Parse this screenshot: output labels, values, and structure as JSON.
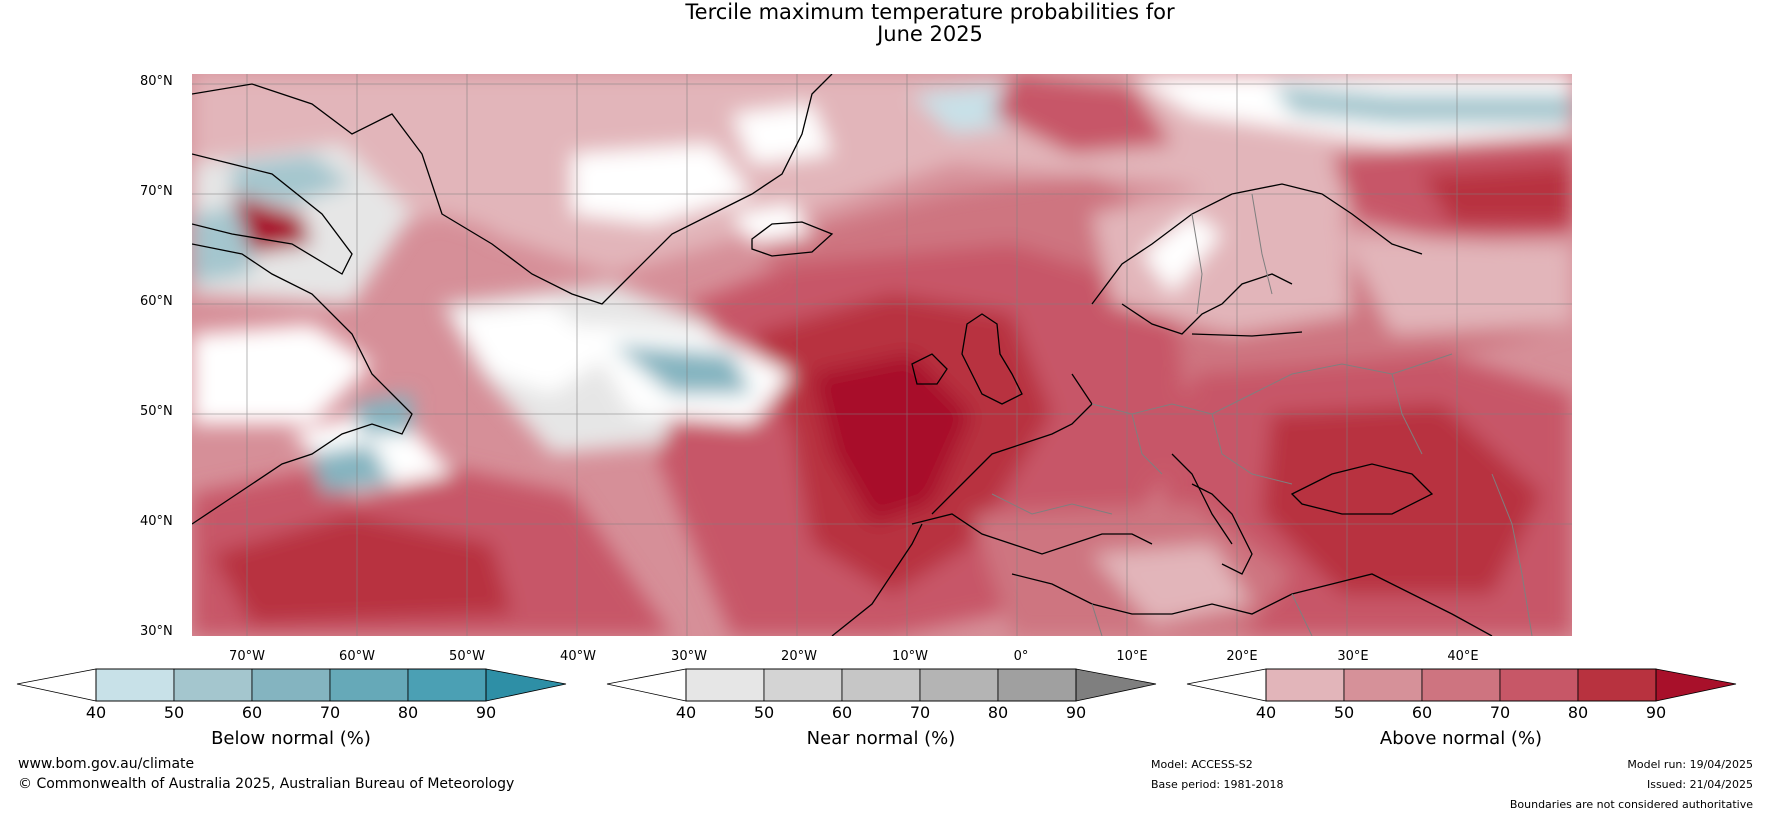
{
  "title": {
    "line1": "Tercile maximum temperature probabilities for",
    "line2": "June 2025"
  },
  "map": {
    "lat_labels": [
      "80°N",
      "70°N",
      "60°N",
      "50°N",
      "40°N",
      "30°N"
    ],
    "lon_labels": [
      "70°W",
      "60°W",
      "50°W",
      "40°W",
      "30°W",
      "20°W",
      "10°W",
      "0°",
      "10°E",
      "20°E",
      "30°E",
      "40°E"
    ],
    "extent": {
      "lon_min": -75,
      "lon_max": 50,
      "lat_min": 30,
      "lat_max": 81
    }
  },
  "colorbars": [
    {
      "title": "Below normal (%)",
      "ticks": [
        "40",
        "50",
        "60",
        "70",
        "80",
        "90"
      ],
      "colors": [
        "#ffffff",
        "#c8e1e8",
        "#a4c6ce",
        "#84b4c0",
        "#66a9b8",
        "#4ba0b4",
        "#2e8fa6"
      ]
    },
    {
      "title": "Near normal (%)",
      "ticks": [
        "40",
        "50",
        "60",
        "70",
        "80",
        "90"
      ],
      "colors": [
        "#ffffff",
        "#e6e6e6",
        "#d4d4d4",
        "#c6c6c6",
        "#b4b4b4",
        "#a0a0a0",
        "#7f7f7f"
      ]
    },
    {
      "title": "Above normal (%)",
      "ticks": [
        "40",
        "50",
        "60",
        "70",
        "80",
        "90"
      ],
      "colors": [
        "#ffffff",
        "#e2b5ba",
        "#d69199",
        "#ce7480",
        "#c75767",
        "#b8323f",
        "#a8102a"
      ]
    }
  ],
  "footer": {
    "website": "www.bom.gov.au/climate",
    "copyright": "© Commonwealth of Australia 2025, Australian Bureau of Meteorology",
    "model": "Model: ACCESS-S2",
    "base_period": "Base period: 1981-2018",
    "model_run": "Model run: 19/04/2025",
    "issued": "Issued: 21/04/2025",
    "disclaimer": "Boundaries are not considered authoritative"
  }
}
